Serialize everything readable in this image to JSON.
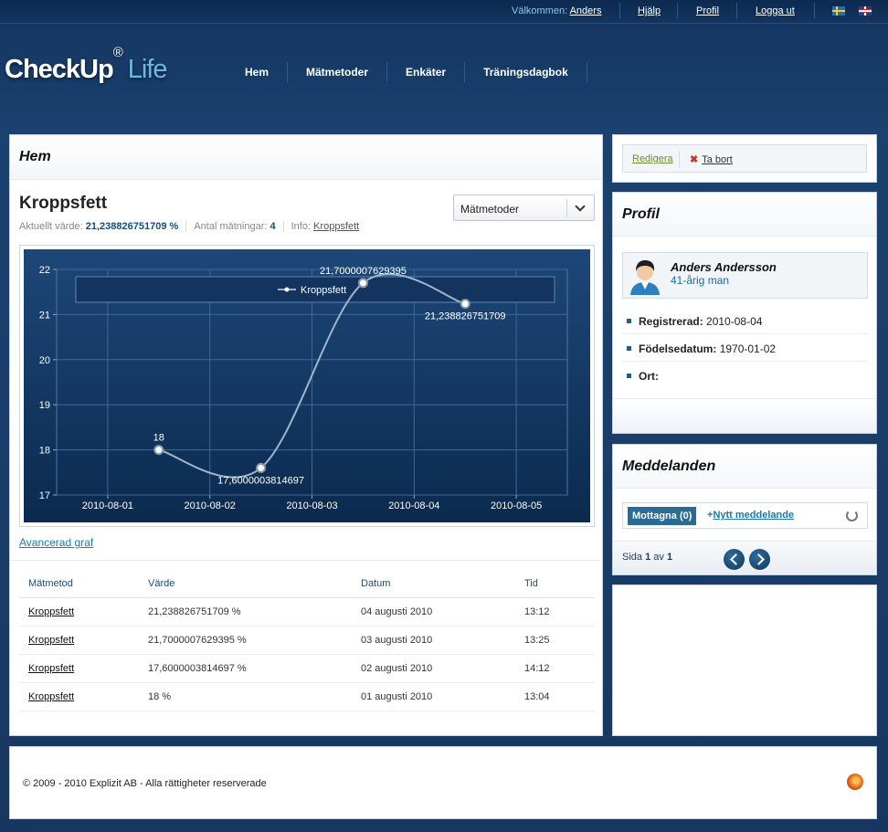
{
  "topbar": {
    "welcome_label": "Välkommen:",
    "user_link": "Anders",
    "help": "Hjälp",
    "profile": "Profil",
    "logout": "Logga ut"
  },
  "brand": {
    "name": "CheckUp",
    "reg": "®",
    "suffix": "Life"
  },
  "nav": [
    "Hem",
    "Mätmetoder",
    "Enkäter",
    "Träningsdagbok"
  ],
  "main": {
    "title": "Hem",
    "heading": "Kroppsfett",
    "current_label": "Aktuellt värde:",
    "current_value": "21,238826751709 %",
    "count_label": "Antal mätningar:",
    "count_value": "4",
    "info_label": "Info:",
    "info_link": "Kroppsfett",
    "dropdown_value": "Mätmetoder",
    "advanced_link": "Avancerad graf"
  },
  "chart_data": {
    "type": "line",
    "title": "",
    "xlabel": "",
    "ylabel": "",
    "x_ticks": [
      "2010-08-01",
      "2010-08-02",
      "2010-08-03",
      "2010-08-04",
      "2010-08-05"
    ],
    "y_ticks": [
      "17",
      "18",
      "19",
      "20",
      "21",
      "22"
    ],
    "ylim": [
      17,
      22
    ],
    "xlim": [
      "2010-08-01",
      "2010-08-05"
    ],
    "grid": true,
    "legend": "top",
    "series": [
      {
        "name": "Kroppsfett",
        "x": [
          "2010-08-01",
          "2010-08-02",
          "2010-08-03",
          "2010-08-04"
        ],
        "y": [
          18,
          17.6000003814697,
          21.7000007629395,
          21.238826751709
        ],
        "labels": [
          "18",
          "17,6000003814697",
          "21,7000007629395",
          "21,238826751709"
        ]
      }
    ]
  },
  "table": {
    "headers": [
      "Mätmetod",
      "Värde",
      "Datum",
      "Tid"
    ],
    "rows": [
      [
        "Kroppsfett",
        "21,238826751709 %",
        "04 augusti 2010",
        "13:12"
      ],
      [
        "Kroppsfett",
        "21,7000007629395 %",
        "03 augusti 2010",
        "13:25"
      ],
      [
        "Kroppsfett",
        "17,6000003814697 %",
        "02 augusti 2010",
        "14:12"
      ],
      [
        "Kroppsfett",
        "18 %",
        "01 augusti 2010",
        "13:04"
      ]
    ]
  },
  "actions": {
    "edit": "Redigera",
    "delete": "Ta bort"
  },
  "profile": {
    "title": "Profil",
    "name": "Anders Andersson",
    "age": "41-årig man",
    "registered_label": "Registrerad:",
    "registered_value": "2010-08-04",
    "birth_label": "Födelsedatum:",
    "birth_value": "1970-01-02",
    "city_label": "Ort:",
    "city_value": ""
  },
  "messages": {
    "title": "Meddelanden",
    "inbox": "Mottagna (0)",
    "new": "Nytt meddelande",
    "page_prefix": "Sida",
    "page": "1",
    "page_of": "av",
    "pages": "1"
  },
  "footer": {
    "copyright": "© 2009 - 2010 Explizit AB - Alla rättigheter reserverade"
  },
  "colors": {
    "header_bg": "#1a416f",
    "chart_bg": "#0f3057",
    "accent": "#2a6a93",
    "link": "#1a7aa8"
  }
}
